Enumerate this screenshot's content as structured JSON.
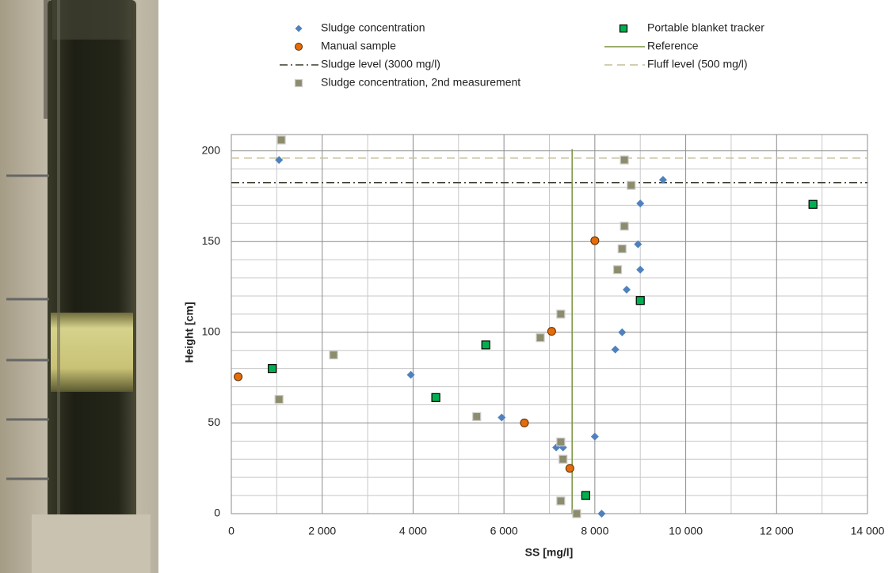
{
  "chart_data": {
    "type": "scatter",
    "xlabel": "SS [mg/l]",
    "ylabel": "Height [cm]",
    "xlim": [
      0,
      14000
    ],
    "ylim": [
      0,
      209
    ],
    "xticks": [
      0,
      {
        "value": 2000,
        "label": "2 000"
      },
      {
        "value": 4000,
        "label": "4 000"
      },
      {
        "value": 6000,
        "label": "6 000"
      },
      {
        "value": 8000,
        "label": "8 000"
      },
      {
        "value": 10000,
        "label": "10 000"
      },
      {
        "value": 12000,
        "label": "12 000"
      },
      {
        "value": 14000,
        "label": "14 000"
      }
    ],
    "yticks": [
      0,
      50,
      100,
      150,
      200
    ],
    "x_minor_grid": [
      1000,
      3000,
      5000,
      7000,
      9000,
      11000,
      13000
    ],
    "y_minor_grid": [
      10,
      20,
      30,
      40,
      60,
      70,
      80,
      90,
      110,
      120,
      130,
      140,
      160,
      170,
      180,
      190
    ],
    "grid": true,
    "series": [
      {
        "name": "Sludge concentration",
        "type": "scatter",
        "marker": "diamond",
        "color": "#4f81bd",
        "x": [
          1050,
          9500,
          9000,
          8950,
          9000,
          8700,
          8600,
          8450,
          3950,
          5950,
          8000,
          7150,
          7300,
          8150
        ],
        "values": [
          195,
          184,
          171,
          148.5,
          134.5,
          123.5,
          100,
          90.5,
          76.5,
          53,
          42.5,
          36.5,
          36.5,
          0
        ]
      },
      {
        "name": "Portable blanket tracker",
        "type": "scatter",
        "marker": "square",
        "color": "#00b050",
        "x": [
          900,
          4500,
          5600,
          7800,
          9000,
          12800
        ],
        "values": [
          80,
          64,
          93,
          10,
          117.5,
          170.5
        ]
      },
      {
        "name": "Manual sample",
        "type": "scatter",
        "marker": "circle",
        "color": "#e46c0a",
        "x": [
          150,
          8000,
          7050,
          6450,
          7450
        ],
        "values": [
          75.5,
          150.5,
          100.5,
          50,
          25
        ]
      },
      {
        "name": "Reference",
        "type": "line",
        "color": "#77933c",
        "x": [
          7500,
          7500
        ],
        "values": [
          0,
          201
        ]
      },
      {
        "name": "Sludge level (3000 mg/l)",
        "type": "hline",
        "dash": "10 4 2 4",
        "color": "#3b3a2a",
        "value": 182.5
      },
      {
        "name": "Fluff level (500 mg/l)",
        "type": "hline",
        "dash": "10 6",
        "color": "#c4bd97",
        "value": 196
      },
      {
        "name": "Sludge concentration, 2nd measurement",
        "type": "scatter",
        "marker": "square",
        "color": "#8d8d6e",
        "x": [
          1100,
          1050,
          2250,
          8650,
          8800,
          8650,
          8600,
          8500,
          7250,
          6800,
          5400,
          7250,
          7300,
          7250,
          7600
        ],
        "values": [
          206,
          63,
          87.5,
          195,
          181,
          158.5,
          146,
          134.5,
          110,
          97,
          53.5,
          39.5,
          30,
          7,
          0
        ]
      }
    ]
  }
}
